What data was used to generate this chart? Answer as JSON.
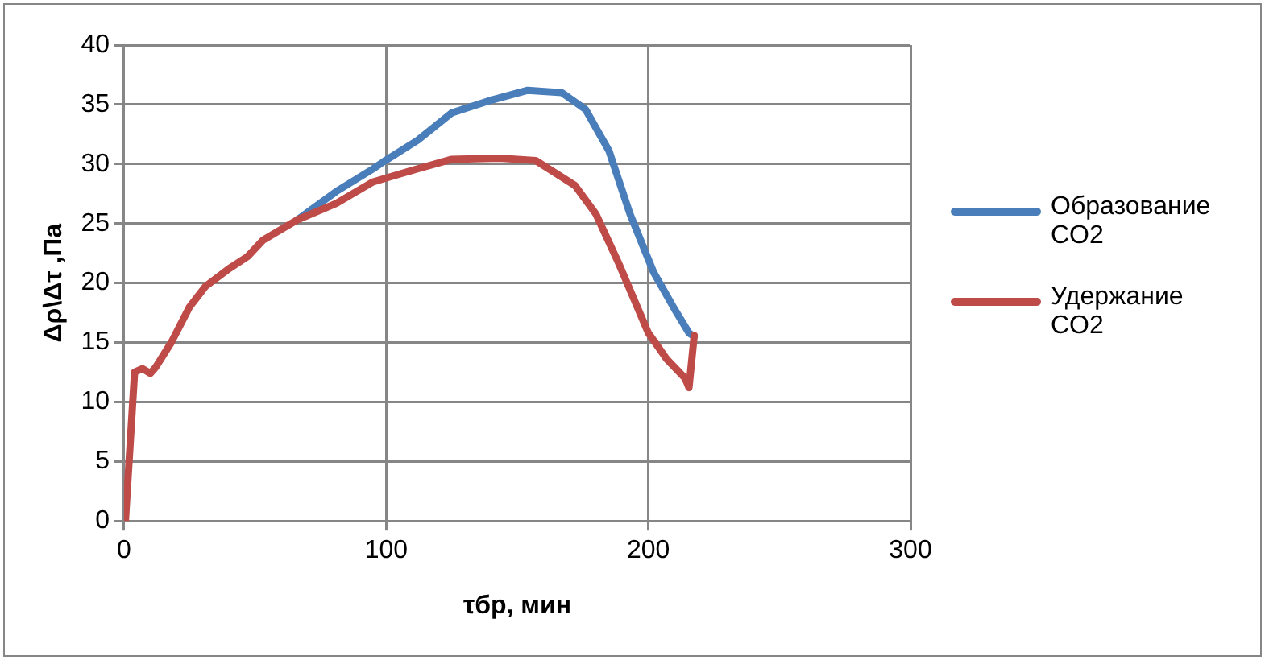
{
  "chart_data": {
    "type": "line",
    "xlabel": "τбр, мин",
    "ylabel": "Δρ\\Δτ ,Па",
    "xlim": [
      0,
      300
    ],
    "xticks": [
      0,
      100,
      200,
      300
    ],
    "ylim": [
      0,
      40
    ],
    "yticks": [
      0,
      5,
      10,
      15,
      20,
      25,
      30,
      35,
      40
    ],
    "grid": true,
    "legend": "right",
    "marker": "none",
    "line_style": "solid",
    "series": [
      {
        "name": "Образование CO2",
        "color": "#4a7ebb",
        "x": [
          66,
          81,
          95,
          99,
          112,
          125,
          139,
          154,
          167,
          176,
          185,
          193,
          202,
          210,
          215.5,
          217.5
        ],
        "values": [
          25.3,
          27.7,
          29.6,
          30.2,
          32,
          34.3,
          35.3,
          36.2,
          36,
          34.6,
          31.1,
          25.8,
          20.9,
          17.8,
          15.8,
          15.5
        ]
      },
      {
        "name": "Удержание CO2",
        "color": "#be4b48",
        "x": [
          0.5,
          4,
          7,
          10,
          12,
          18,
          25,
          31,
          40,
          47,
          53,
          66,
          81,
          95,
          112,
          125,
          143,
          157,
          172,
          180,
          189,
          200,
          207,
          214,
          215.5,
          217.5
        ],
        "values": [
          0,
          12.5,
          12.8,
          12.4,
          12.9,
          15,
          18,
          19.7,
          21.2,
          22.2,
          23.6,
          25.3,
          26.7,
          28.5,
          29.6,
          30.4,
          30.5,
          30.3,
          28.2,
          25.8,
          21.5,
          15.8,
          13.6,
          12,
          11.2,
          15.6
        ]
      }
    ]
  }
}
